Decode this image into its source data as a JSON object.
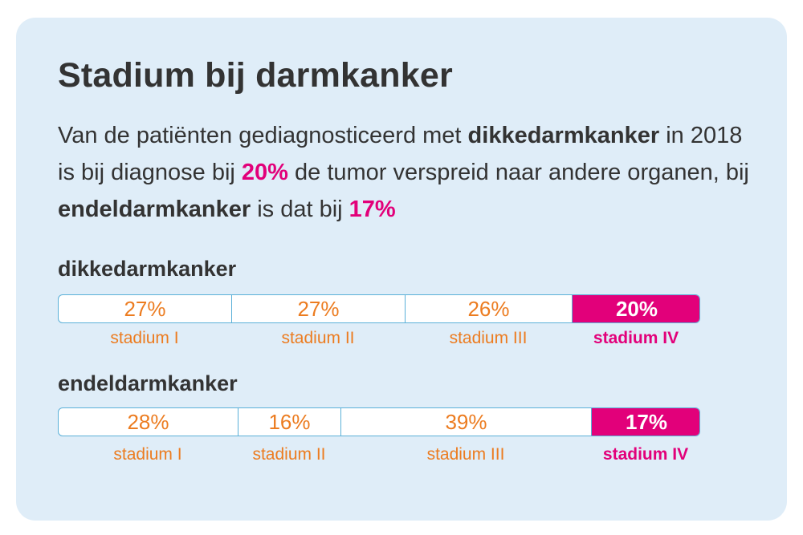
{
  "title": "Stadium bij darmkanker",
  "intro": {
    "p1": "Van de patiënten gediagnosticeerd met ",
    "b1": "dikkedarmkanker",
    "p2": " in 2018 is bij diagnose bij ",
    "v1": "20%",
    "p3": " de tumor verspreid naar andere organen, bij ",
    "b2": "endeldarmkanker",
    "p4": " is dat bij ",
    "v2": "17%"
  },
  "colors": {
    "background": "#dfedf8",
    "stage_text": "#ec7c20",
    "highlight": "#e2007a",
    "bar_border": "#5ab0d8",
    "text": "#333333"
  },
  "chart_data": [
    {
      "type": "bar",
      "orientation": "horizontal-stacked",
      "title": "dikkedarmkanker",
      "categories": [
        "stadium I",
        "stadium II",
        "stadium III",
        "stadium IV"
      ],
      "values": [
        27,
        27,
        26,
        20
      ],
      "labels": [
        "27%",
        "27%",
        "26%",
        "20%"
      ],
      "unit": "%",
      "highlight": "stadium IV"
    },
    {
      "type": "bar",
      "orientation": "horizontal-stacked",
      "title": "endeldarmkanker",
      "categories": [
        "stadium I",
        "stadium II",
        "stadium III",
        "stadium IV"
      ],
      "values": [
        28,
        16,
        39,
        17
      ],
      "labels": [
        "28%",
        "16%",
        "39%",
        "17%"
      ],
      "unit": "%",
      "highlight": "stadium IV"
    }
  ]
}
